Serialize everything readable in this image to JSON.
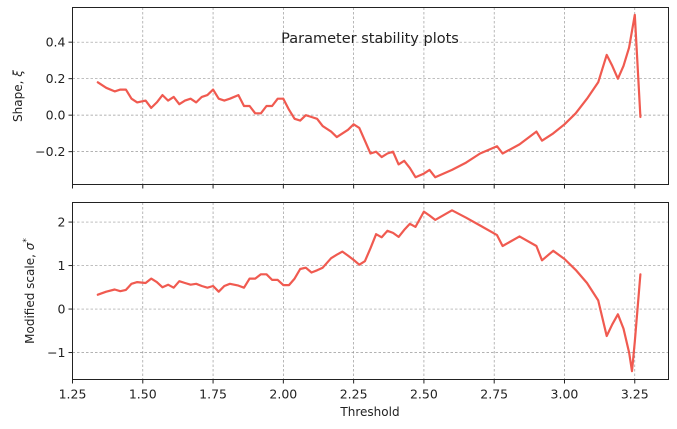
{
  "chart_data": {
    "type": "line",
    "title": "Parameter stability plots",
    "xlabel": "Threshold",
    "xlim": [
      1.25,
      3.37
    ],
    "xticks": [
      "1.25",
      "1.50",
      "1.75",
      "2.00",
      "2.25",
      "2.50",
      "2.75",
      "3.00",
      "3.25"
    ],
    "color": "#f05a50",
    "grid": true,
    "panels": [
      {
        "ylabel": "Shape, ξ",
        "ylim": [
          -0.38,
          0.59
        ],
        "yticks": [
          "0.4",
          "0.2",
          "0.0",
          "−0.2"
        ],
        "ytick_values": [
          0.4,
          0.2,
          0.0,
          -0.2
        ],
        "x": [
          1.34,
          1.37,
          1.4,
          1.42,
          1.44,
          1.46,
          1.48,
          1.51,
          1.53,
          1.55,
          1.57,
          1.59,
          1.61,
          1.63,
          1.65,
          1.67,
          1.69,
          1.71,
          1.73,
          1.75,
          1.77,
          1.79,
          1.81,
          1.84,
          1.86,
          1.88,
          1.9,
          1.92,
          1.94,
          1.96,
          1.98,
          2.0,
          2.02,
          2.04,
          2.06,
          2.08,
          2.1,
          2.12,
          2.14,
          2.17,
          2.19,
          2.21,
          2.23,
          2.25,
          2.27,
          2.29,
          2.31,
          2.33,
          2.35,
          2.37,
          2.39,
          2.41,
          2.43,
          2.45,
          2.47,
          2.5,
          2.52,
          2.54,
          2.6,
          2.65,
          2.7,
          2.76,
          2.78,
          2.84,
          2.9,
          2.92,
          2.96,
          3.0,
          3.04,
          3.08,
          3.12,
          3.15,
          3.17,
          3.19,
          3.21,
          3.23,
          3.25,
          3.27
        ],
        "y": [
          0.18,
          0.15,
          0.13,
          0.14,
          0.14,
          0.09,
          0.07,
          0.08,
          0.04,
          0.07,
          0.11,
          0.08,
          0.1,
          0.06,
          0.08,
          0.09,
          0.07,
          0.1,
          0.11,
          0.14,
          0.09,
          0.08,
          0.09,
          0.11,
          0.05,
          0.05,
          0.01,
          0.01,
          0.05,
          0.05,
          0.09,
          0.09,
          0.03,
          -0.02,
          -0.03,
          0.0,
          -0.01,
          -0.02,
          -0.06,
          -0.09,
          -0.12,
          -0.1,
          -0.08,
          -0.05,
          -0.07,
          -0.14,
          -0.21,
          -0.2,
          -0.23,
          -0.21,
          -0.2,
          -0.27,
          -0.25,
          -0.29,
          -0.34,
          -0.32,
          -0.3,
          -0.34,
          -0.3,
          -0.26,
          -0.21,
          -0.17,
          -0.21,
          -0.16,
          -0.09,
          -0.14,
          -0.1,
          -0.05,
          0.01,
          0.09,
          0.18,
          0.33,
          0.27,
          0.2,
          0.27,
          0.37,
          0.55,
          -0.01
        ]
      },
      {
        "ylabel": "Modified scale, σ*",
        "ylim": [
          -1.62,
          2.45
        ],
        "yticks": [
          "2",
          "1",
          "0",
          "−1"
        ],
        "ytick_values": [
          2,
          1,
          0,
          -1
        ],
        "x": [
          1.34,
          1.37,
          1.4,
          1.42,
          1.44,
          1.46,
          1.48,
          1.51,
          1.53,
          1.55,
          1.57,
          1.59,
          1.61,
          1.63,
          1.65,
          1.67,
          1.69,
          1.71,
          1.73,
          1.75,
          1.77,
          1.79,
          1.81,
          1.84,
          1.86,
          1.88,
          1.9,
          1.92,
          1.94,
          1.96,
          1.98,
          2.0,
          2.02,
          2.04,
          2.06,
          2.08,
          2.1,
          2.12,
          2.14,
          2.17,
          2.19,
          2.21,
          2.23,
          2.25,
          2.27,
          2.29,
          2.31,
          2.33,
          2.35,
          2.37,
          2.39,
          2.41,
          2.43,
          2.45,
          2.47,
          2.5,
          2.52,
          2.54,
          2.6,
          2.65,
          2.7,
          2.76,
          2.78,
          2.84,
          2.9,
          2.92,
          2.96,
          3.0,
          3.04,
          3.08,
          3.12,
          3.15,
          3.17,
          3.19,
          3.21,
          3.23,
          3.24,
          3.25,
          3.27
        ],
        "y": [
          0.33,
          0.4,
          0.45,
          0.41,
          0.44,
          0.58,
          0.62,
          0.6,
          0.7,
          0.62,
          0.5,
          0.56,
          0.49,
          0.64,
          0.6,
          0.56,
          0.58,
          0.53,
          0.49,
          0.53,
          0.4,
          0.53,
          0.58,
          0.54,
          0.49,
          0.7,
          0.7,
          0.8,
          0.8,
          0.67,
          0.67,
          0.55,
          0.55,
          0.7,
          0.92,
          0.95,
          0.84,
          0.89,
          0.95,
          1.17,
          1.25,
          1.32,
          1.23,
          1.13,
          1.02,
          1.1,
          1.4,
          1.72,
          1.65,
          1.8,
          1.75,
          1.66,
          1.82,
          1.96,
          1.89,
          2.24,
          2.15,
          2.05,
          2.27,
          2.1,
          1.92,
          1.7,
          1.45,
          1.67,
          1.45,
          1.12,
          1.34,
          1.15,
          0.9,
          0.6,
          0.2,
          -0.62,
          -0.35,
          -0.12,
          -0.45,
          -1.0,
          -1.43,
          -0.75,
          0.8
        ]
      }
    ]
  }
}
